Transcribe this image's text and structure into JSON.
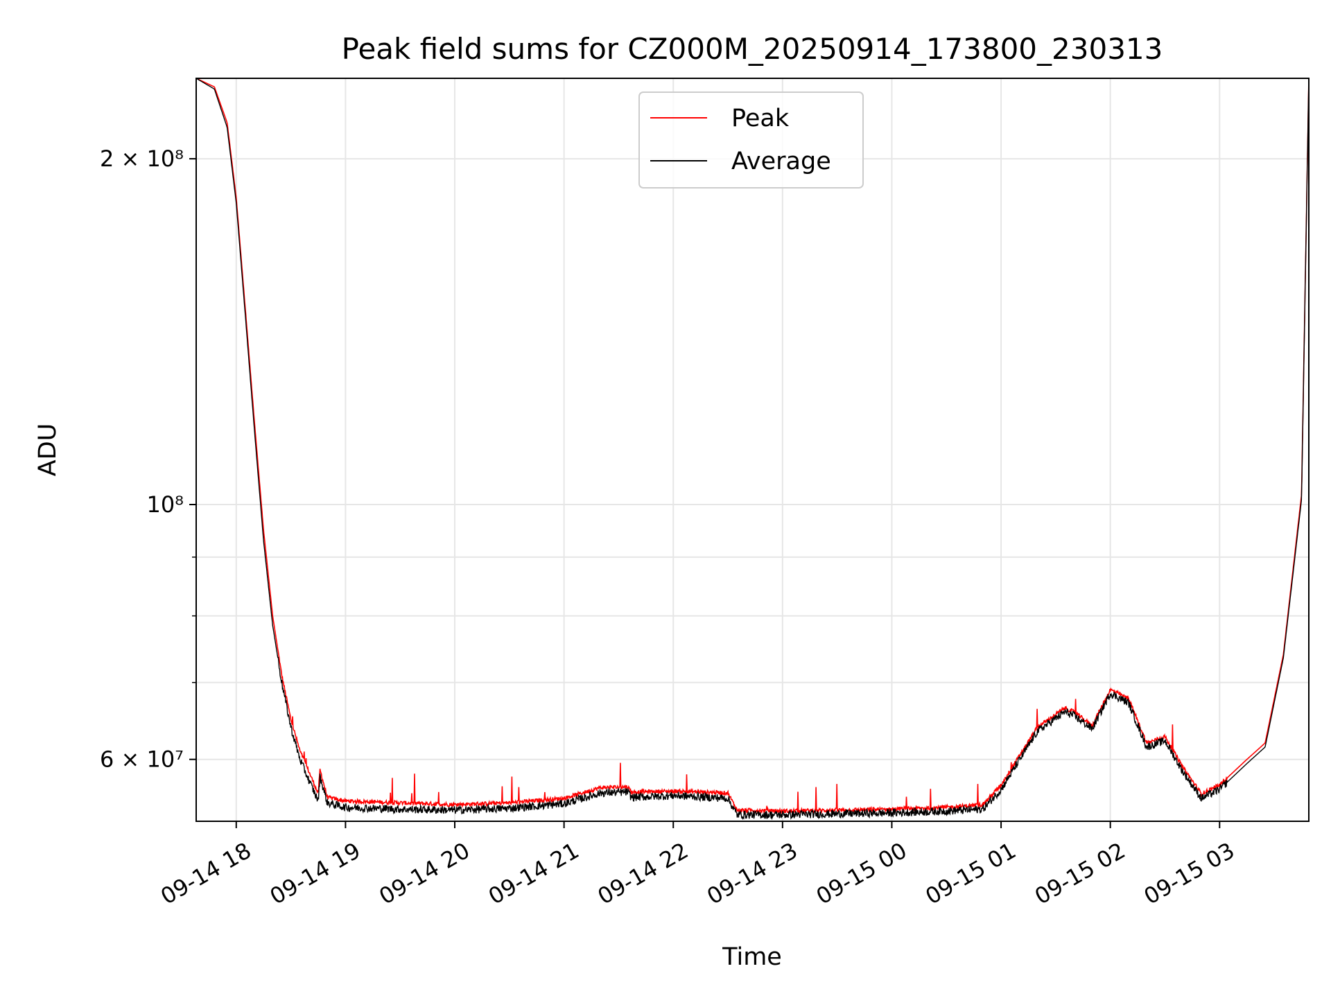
{
  "chart_data": {
    "type": "line",
    "title": "Peak field sums for CZ000M_20250914_173800_230313",
    "xlabel": "Time",
    "ylabel": "ADU",
    "yscale": "log",
    "xlim": [
      "09-14 17:38",
      "09-15 03:49"
    ],
    "ylim": [
      53000000,
      235000000
    ],
    "grid": true,
    "legend_position": "top-center",
    "x_ticks": [
      "09-14 18",
      "09-14 19",
      "09-14 20",
      "09-14 21",
      "09-14 22",
      "09-14 23",
      "09-15 00",
      "09-15 01",
      "09-15 02",
      "09-15 03"
    ],
    "y_ticks": [
      {
        "value": 200000000,
        "label": "2 × 10⁸"
      },
      {
        "value": 100000000,
        "label": "10⁸"
      },
      {
        "value": 60000000,
        "label": "6 × 10⁷"
      }
    ],
    "series": [
      {
        "name": "Peak",
        "color": "#ff0000",
        "x": [
          "09-14 17:38",
          "09-14 17:48",
          "09-14 17:55",
          "09-14 18:00",
          "09-14 18:05",
          "09-14 18:10",
          "09-14 18:15",
          "09-14 18:20",
          "09-14 18:25",
          "09-14 18:30",
          "09-14 18:35",
          "09-14 18:40",
          "09-14 18:45",
          "09-14 18:46",
          "09-14 18:50",
          "09-14 19:00",
          "09-14 19:30",
          "09-14 20:00",
          "09-14 20:30",
          "09-14 21:00",
          "09-14 21:20",
          "09-14 21:35",
          "09-14 21:37",
          "09-14 22:00",
          "09-14 22:30",
          "09-14 22:35",
          "09-14 23:00",
          "09-14 23:30",
          "09-15 00:00",
          "09-15 00:30",
          "09-15 00:50",
          "09-15 01:00",
          "09-15 01:20",
          "09-15 01:35",
          "09-15 01:40",
          "09-15 01:50",
          "09-15 02:00",
          "09-15 02:10",
          "09-15 02:20",
          "09-15 02:30",
          "09-15 02:40",
          "09-15 02:50",
          "09-15 03:00",
          "09-15 03:15",
          "09-15 03:25",
          "09-15 03:35",
          "09-15 03:45",
          "09-15 03:49"
        ],
        "y": [
          235000000,
          231000000,
          215000000,
          185000000,
          148000000,
          118000000,
          95000000,
          80000000,
          71000000,
          65000000,
          61000000,
          58500000,
          56000000,
          58800000,
          55600000,
          55200000,
          55000000,
          54800000,
          55000000,
          55500000,
          56700000,
          56800000,
          56200000,
          56300000,
          56100000,
          54200000,
          54100000,
          54200000,
          54300000,
          54500000,
          54800000,
          57000000,
          64000000,
          66500000,
          66000000,
          64200000,
          69000000,
          67800000,
          62000000,
          62800000,
          59000000,
          56000000,
          57000000,
          60000000,
          62000000,
          74000000,
          102000000,
          235000000
        ]
      },
      {
        "name": "Average",
        "color": "#000000",
        "x": [
          "09-14 17:38",
          "09-14 17:48",
          "09-14 17:55",
          "09-14 18:00",
          "09-14 18:05",
          "09-14 18:10",
          "09-14 18:15",
          "09-14 18:20",
          "09-14 18:25",
          "09-14 18:30",
          "09-14 18:35",
          "09-14 18:40",
          "09-14 18:45",
          "09-14 18:46",
          "09-14 18:50",
          "09-14 19:00",
          "09-14 19:30",
          "09-14 20:00",
          "09-14 20:30",
          "09-14 21:00",
          "09-14 21:20",
          "09-14 21:35",
          "09-14 21:37",
          "09-14 22:00",
          "09-14 22:30",
          "09-14 22:35",
          "09-14 23:00",
          "09-14 23:30",
          "09-15 00:00",
          "09-15 00:30",
          "09-15 00:50",
          "09-15 01:00",
          "09-15 01:20",
          "09-15 01:35",
          "09-15 01:40",
          "09-15 01:50",
          "09-15 02:00",
          "09-15 02:10",
          "09-15 02:20",
          "09-15 02:30",
          "09-15 02:40",
          "09-15 02:50",
          "09-15 03:00",
          "09-15 03:15",
          "09-15 03:25",
          "09-15 03:35",
          "09-15 03:45",
          "09-15 03:49"
        ],
        "y": [
          235000000,
          230000000,
          213000000,
          183000000,
          146000000,
          116000000,
          93000000,
          78500000,
          70000000,
          64000000,
          60000000,
          57500000,
          55200000,
          58000000,
          55000000,
          54500000,
          54300000,
          54200000,
          54400000,
          54900000,
          56100000,
          56200000,
          55600000,
          55800000,
          55500000,
          53700000,
          53700000,
          53800000,
          53900000,
          54100000,
          54300000,
          56500000,
          63500000,
          66000000,
          65500000,
          63800000,
          68500000,
          67200000,
          61500000,
          62300000,
          58500000,
          55500000,
          56500000,
          59500000,
          61500000,
          73500000,
          101000000,
          235000000
        ]
      }
    ]
  }
}
